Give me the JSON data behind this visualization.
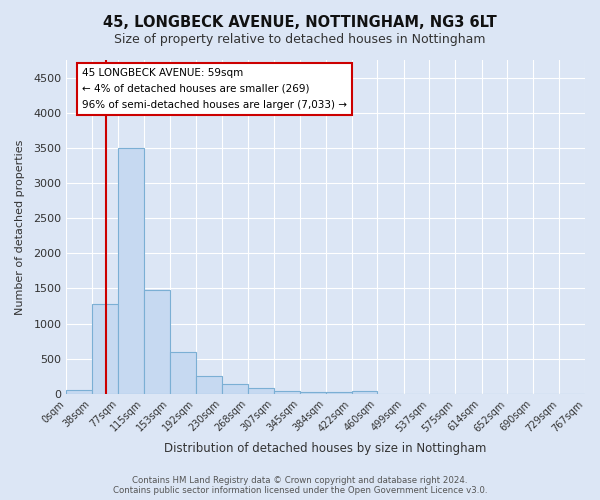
{
  "title1": "45, LONGBECK AVENUE, NOTTINGHAM, NG3 6LT",
  "title2": "Size of property relative to detached houses in Nottingham",
  "xlabel": "Distribution of detached houses by size in Nottingham",
  "ylabel": "Number of detached properties",
  "footnote": "Contains HM Land Registry data © Crown copyright and database right 2024.\nContains public sector information licensed under the Open Government Licence v3.0.",
  "bar_labels": [
    "0sqm",
    "38sqm",
    "77sqm",
    "115sqm",
    "153sqm",
    "192sqm",
    "230sqm",
    "268sqm",
    "307sqm",
    "345sqm",
    "384sqm",
    "422sqm",
    "460sqm",
    "499sqm",
    "537sqm",
    "575sqm",
    "614sqm",
    "652sqm",
    "690sqm",
    "729sqm",
    "767sqm"
  ],
  "bar_values": [
    50,
    1280,
    3500,
    1480,
    590,
    255,
    140,
    80,
    45,
    25,
    25,
    40,
    0,
    0,
    0,
    0,
    0,
    0,
    0,
    0
  ],
  "bin_edges": [
    0,
    38,
    77,
    115,
    153,
    192,
    230,
    268,
    307,
    345,
    384,
    422,
    460,
    499,
    537,
    575,
    614,
    652,
    690,
    729,
    767
  ],
  "bar_color": "#c6d9f1",
  "bar_edge_color": "#7bafd4",
  "vline_x": 59,
  "annotation_text_line1": "45 LONGBECK AVENUE: 59sqm",
  "annotation_text_line2": "← 4% of detached houses are smaller (269)",
  "annotation_text_line3": "96% of semi-detached houses are larger (7,033) →",
  "vline_color": "#cc0000",
  "box_color": "#cc0000",
  "ylim": [
    0,
    4750
  ],
  "yticks": [
    0,
    500,
    1000,
    1500,
    2000,
    2500,
    3000,
    3500,
    4000,
    4500
  ],
  "background_color": "#dce6f5",
  "grid_color": "#ffffff"
}
